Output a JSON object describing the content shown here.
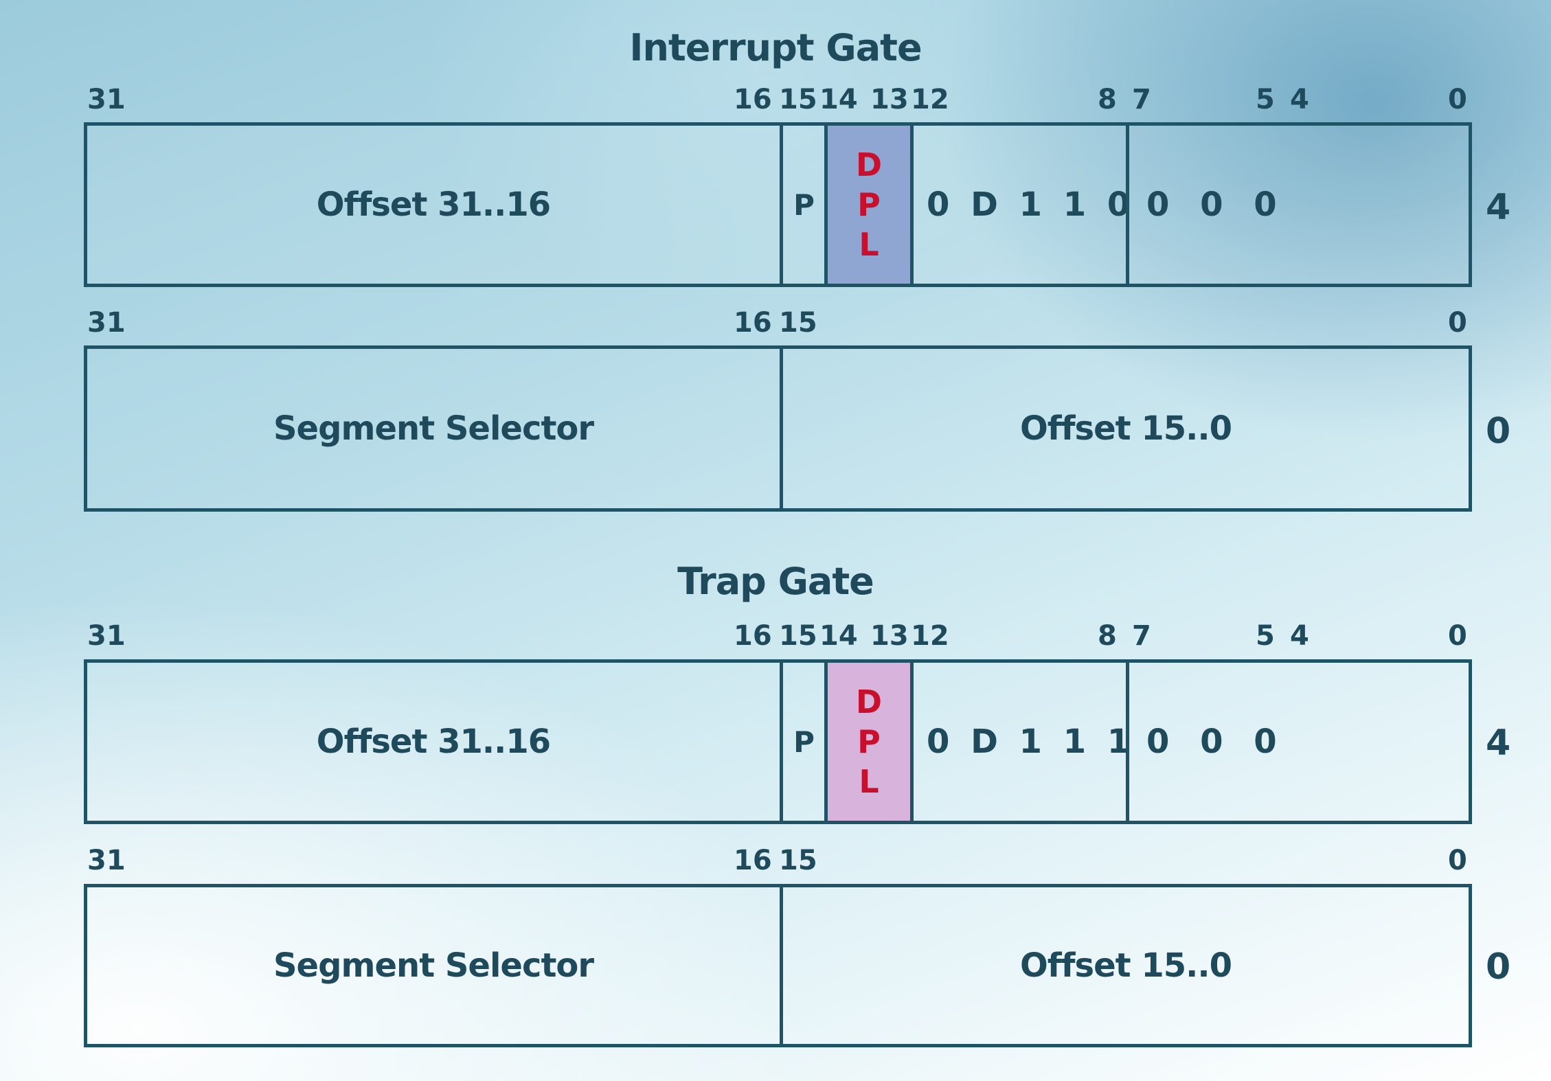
{
  "interrupt_gate": {
    "title": "Interrupt Gate",
    "upper": {
      "bits": {
        "b31": "31",
        "b16": "16",
        "b15": "15",
        "b14": "14",
        "b13": "13",
        "b12": "12",
        "b8": "8",
        "b7": "7",
        "b5": "5",
        "b4": "4",
        "b0": "0"
      },
      "offset_label": "Offset 31..16",
      "p_label": "P",
      "dpl": [
        "D",
        "P",
        "L"
      ],
      "type_bits": "0 D 1 1 0",
      "reserved_bits": "0 0 0",
      "side": "4"
    },
    "lower": {
      "bits": {
        "b31": "31",
        "b16": "16",
        "b15": "15",
        "b0": "0"
      },
      "selector_label": "Segment Selector",
      "offset_label": "Offset 15..0",
      "side": "0"
    }
  },
  "trap_gate": {
    "title": "Trap Gate",
    "upper": {
      "bits": {
        "b31": "31",
        "b16": "16",
        "b15": "15",
        "b14": "14",
        "b13": "13",
        "b12": "12",
        "b8": "8",
        "b7": "7",
        "b5": "5",
        "b4": "4",
        "b0": "0"
      },
      "offset_label": "Offset 31..16",
      "p_label": "P",
      "dpl": [
        "D",
        "P",
        "L"
      ],
      "type_bits": "0 D 1 1 1",
      "reserved_bits": "0 0 0",
      "side": "4"
    },
    "lower": {
      "bits": {
        "b31": "31",
        "b16": "16",
        "b15": "15",
        "b0": "0"
      },
      "selector_label": "Segment Selector",
      "offset_label": "Offset 15..0",
      "side": "0"
    }
  },
  "colors": {
    "border": "#1f5466",
    "text": "#1f4a5c",
    "dpl_text": "#c8102e",
    "dpl_interrupt_fill": "#8fa5d2",
    "dpl_trap_fill": "#d8b4dc"
  }
}
